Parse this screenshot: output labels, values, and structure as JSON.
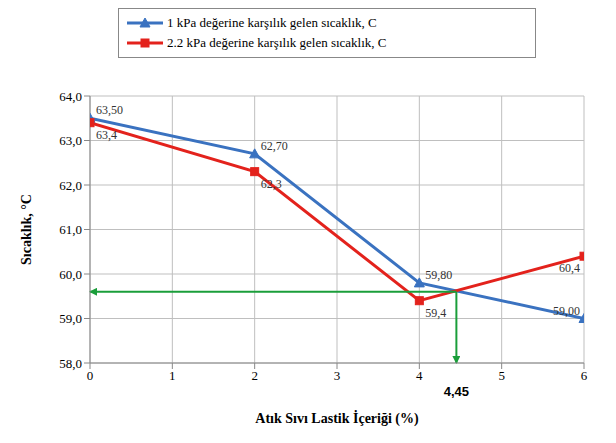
{
  "chart_data": {
    "type": "line",
    "x": [
      0,
      2,
      4,
      6
    ],
    "x_label": "Atık Sıvı Lastik İçeriği (%)",
    "y_label": "Sıcaklık, °C",
    "xlim": [
      0,
      6
    ],
    "xticks": [
      0,
      1,
      2,
      3,
      4,
      5,
      6
    ],
    "ylim": [
      58,
      64
    ],
    "yticks": [
      {
        "value": 58,
        "label": "58,0"
      },
      {
        "value": 59,
        "label": "59,0"
      },
      {
        "value": 60,
        "label": "60,0"
      },
      {
        "value": 61,
        "label": "61,0"
      },
      {
        "value": 62,
        "label": "62,0"
      },
      {
        "value": 63,
        "label": "63,0"
      },
      {
        "value": 64,
        "label": "64,0"
      }
    ],
    "grid": true,
    "legend": "top",
    "data_labels": true,
    "series": [
      {
        "name": "1 kPa değerine karşılık gelen sıcaklık, C",
        "color": "#3a72c0",
        "marker": "triangle",
        "values": [
          63.5,
          62.7,
          59.8,
          59.0
        ],
        "value_labels": [
          "63,50",
          "62,70",
          "59,80",
          "59,00"
        ]
      },
      {
        "name": "2.2 kPa değerine karşılık gelen sıcaklık, C",
        "color": "#e3221c",
        "marker": "square",
        "values": [
          63.4,
          62.3,
          59.4,
          60.4
        ],
        "value_labels": [
          "63,4",
          "62,3",
          "59,4",
          "60,4"
        ]
      }
    ],
    "annotation": {
      "x": 4.45,
      "y": 59.6,
      "label": "4,45",
      "color": "#1a9e3a"
    }
  }
}
